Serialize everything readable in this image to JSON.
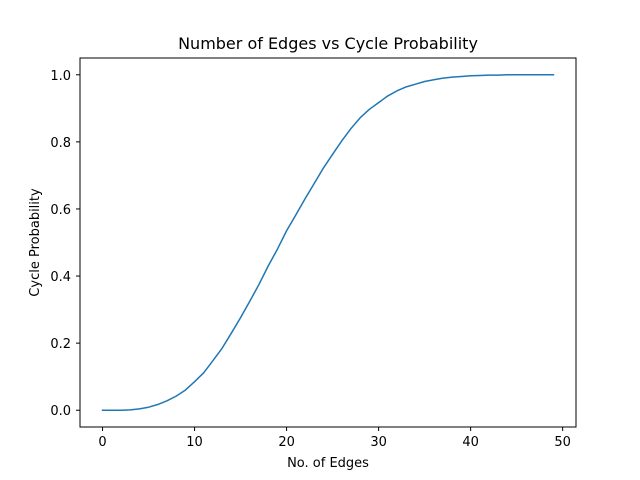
{
  "chart_data": {
    "type": "line",
    "title": "Number of Edges vs Cycle Probability",
    "xlabel": "No. of Edges",
    "ylabel": "Cycle Probability",
    "xlim": [
      -2.45,
      51.45
    ],
    "ylim": [
      -0.05,
      1.05
    ],
    "grid": false,
    "x_ticks": [
      0,
      10,
      20,
      30,
      40,
      50
    ],
    "x_tick_labels": [
      "0",
      "10",
      "20",
      "30",
      "40",
      "50"
    ],
    "y_ticks": [
      0.0,
      0.2,
      0.4,
      0.6,
      0.8,
      1.0
    ],
    "y_tick_labels": [
      "0.0",
      "0.2",
      "0.4",
      "0.6",
      "0.8",
      "1.0"
    ],
    "series": [
      {
        "color": "#1f77b4",
        "x": [
          0,
          1,
          2,
          3,
          4,
          5,
          6,
          7,
          8,
          9,
          10,
          11,
          12,
          13,
          14,
          15,
          16,
          17,
          18,
          19,
          20,
          21,
          22,
          23,
          24,
          25,
          26,
          27,
          28,
          29,
          30,
          31,
          32,
          33,
          34,
          35,
          36,
          37,
          38,
          39,
          40,
          41,
          42,
          43,
          44,
          45,
          46,
          47,
          48,
          49
        ],
        "values": [
          0.0,
          0.0,
          0.0,
          0.001,
          0.004,
          0.009,
          0.017,
          0.028,
          0.042,
          0.06,
          0.085,
          0.112,
          0.148,
          0.185,
          0.23,
          0.276,
          0.325,
          0.375,
          0.43,
          0.48,
          0.535,
          0.582,
          0.63,
          0.676,
          0.722,
          0.763,
          0.803,
          0.84,
          0.872,
          0.897,
          0.917,
          0.937,
          0.952,
          0.964,
          0.972,
          0.98,
          0.985,
          0.99,
          0.993,
          0.995,
          0.997,
          0.998,
          0.999,
          0.999,
          1.0,
          1.0,
          1.0,
          1.0,
          1.0,
          1.0
        ]
      }
    ]
  }
}
